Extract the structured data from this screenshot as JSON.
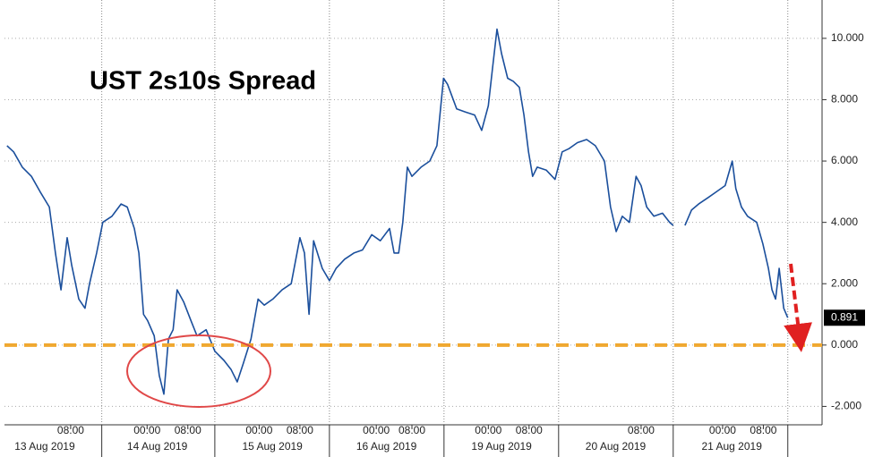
{
  "chart_data": {
    "type": "line",
    "title": "UST 2s10s Spread",
    "x": [
      0.5,
      1.8,
      3.5,
      5.3,
      7.0,
      8.8,
      10.0,
      11.1,
      12.3,
      13.2,
      14.6,
      15.8,
      16.7,
      18.1,
      19.3,
      21.1,
      22.9,
      24.1,
      25.5,
      26.4,
      27.3,
      28.1,
      29.4,
      30.4,
      31.3,
      32.2,
      33.1,
      33.9,
      35.2,
      36.6,
      37.8,
      39.6,
      41.3,
      43.1,
      44.5,
      45.7,
      46.9,
      48.4,
      49.8,
      51.0,
      52.7,
      54.5,
      56.3,
      58.0,
      58.9,
      59.8,
      60.7,
      62.4,
      63.8,
      65.1,
      66.8,
      68.6,
      70.3,
      72.1,
      73.8,
      75.6,
      76.5,
      77.4,
      78.2,
      79.1,
      80.0,
      81.8,
      83.5,
      84.9,
      86.2,
      87.0,
      88.8,
      90.5,
      92.3,
      93.7,
      95.0,
      95.8,
      96.7,
      97.6,
      98.8,
      99.9,
      101.1,
      102.0,
      102.9,
      103.7,
      104.6,
      106.4,
      108.1,
      109.5,
      110.8,
      112.5,
      114.3,
      116.0,
      117.8,
      119.0,
      120.1,
      121.3,
      122.7,
      124.0,
      125.0,
      126.1,
      127.5,
      129.2,
      130.6,
      131.3,
      132.5,
      133.6,
      134.9,
      136.3,
      138.1,
      139.8,
      141.5,
      142.9,
      143.6,
      144.7,
      145.9,
      147.7,
      148.9,
      150.0,
      150.7,
      151.4,
      152.1,
      153.0,
      153.8
    ],
    "series": [
      {
        "name": "UST 2s10s Spread",
        "color": "#1b4f9c",
        "values": [
          6.5,
          6.3,
          5.8,
          5.5,
          5.0,
          4.5,
          3.0,
          1.8,
          3.5,
          2.6,
          1.5,
          1.2,
          2.0,
          3.0,
          4.0,
          4.2,
          4.6,
          4.5,
          3.8,
          3.0,
          1.0,
          0.8,
          0.3,
          -1.0,
          -1.6,
          0.2,
          0.5,
          1.8,
          1.4,
          0.8,
          0.3,
          0.5,
          -0.2,
          -0.5,
          -0.8,
          -1.2,
          -0.6,
          0.2,
          1.5,
          1.3,
          1.5,
          1.8,
          2.0,
          3.5,
          3.0,
          1.0,
          3.4,
          2.5,
          2.1,
          2.5,
          2.8,
          3.0,
          3.1,
          3.6,
          3.4,
          3.8,
          3.0,
          3.0,
          4.0,
          5.8,
          5.5,
          5.8,
          6.0,
          6.5,
          8.7,
          8.5,
          7.7,
          7.6,
          7.5,
          7.0,
          7.8,
          9.0,
          10.3,
          9.5,
          8.7,
          8.6,
          8.4,
          7.5,
          6.3,
          5.5,
          5.8,
          5.7,
          5.4,
          6.3,
          6.4,
          6.6,
          6.7,
          6.5,
          6.0,
          4.5,
          3.7,
          4.2,
          4.0,
          5.5,
          5.2,
          4.5,
          4.2,
          4.3,
          4.0,
          3.9,
          null,
          3.9,
          4.4,
          4.6,
          4.8,
          5.0,
          5.2,
          6.0,
          5.1,
          4.5,
          4.2,
          4.0,
          3.3,
          2.5,
          1.8,
          1.5,
          2.5,
          1.2,
          0.891
        ]
      }
    ],
    "last_value_label": "0.891",
    "xlim": [
      0,
      160
    ],
    "xticks": [
      {
        "value": 13,
        "label": "08:00"
      },
      {
        "value": 28,
        "label": "00:00"
      },
      {
        "value": 36,
        "label": "08:00"
      },
      {
        "value": 50,
        "label": "00:00"
      },
      {
        "value": 58,
        "label": "08:00"
      },
      {
        "value": 73,
        "label": "00:00"
      },
      {
        "value": 80,
        "label": "08:00"
      },
      {
        "value": 95,
        "label": "00:00"
      },
      {
        "value": 103,
        "label": "08:00"
      },
      {
        "value": 125,
        "label": "08:00"
      },
      {
        "value": 141,
        "label": "00:00"
      },
      {
        "value": 149,
        "label": "08:00"
      }
    ],
    "date_labels": [
      {
        "value": 7.9,
        "label": "13 Aug 2019"
      },
      {
        "value": 30,
        "label": "14 Aug 2019"
      },
      {
        "value": 52.6,
        "label": "15 Aug 2019"
      },
      {
        "value": 75,
        "label": "16 Aug 2019"
      },
      {
        "value": 97.6,
        "label": "19 Aug 2019"
      },
      {
        "value": 120,
        "label": "20 Aug 2019"
      },
      {
        "value": 142.8,
        "label": "21 Aug 2019"
      }
    ],
    "xgrid": [
      19.1,
      41.3,
      63.8,
      86.3,
      108.8,
      131.3,
      153.8
    ],
    "ylim": [
      -2.6,
      11.25
    ],
    "yticks": [
      {
        "value": -2,
        "label": "-2.000"
      },
      {
        "value": 0,
        "label": "0.000"
      },
      {
        "value": 2,
        "label": "2.000"
      },
      {
        "value": 4,
        "label": "4.000"
      },
      {
        "value": 6,
        "label": "6.000"
      },
      {
        "value": 8,
        "label": "8.000"
      },
      {
        "value": 10,
        "label": "10.000"
      }
    ],
    "grid": true,
    "reference_line": {
      "value": 0,
      "color": "#f0a830"
    }
  }
}
